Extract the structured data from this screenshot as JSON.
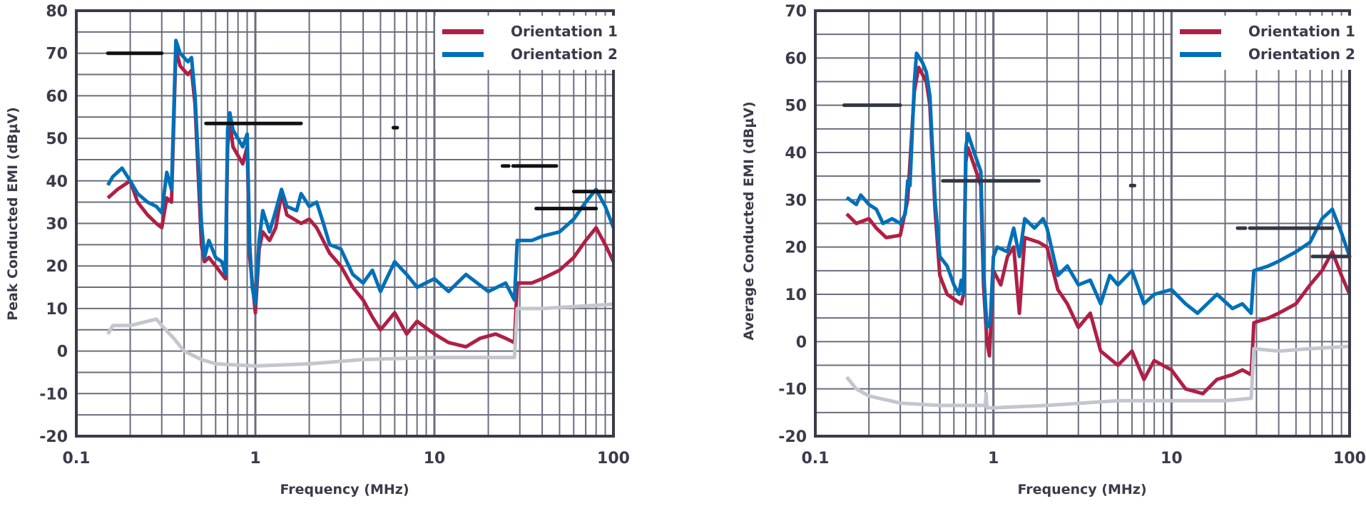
{
  "chart_data": [
    {
      "type": "line",
      "ylabel": "Peak Conducted EMI (dBµV)",
      "xlabel": "Frequency (MHz)",
      "xscale": "log",
      "xlim": [
        0.1,
        100
      ],
      "ylim": [
        -20,
        80
      ],
      "xticks": [
        "0.1",
        "1",
        "10",
        "100"
      ],
      "yticks": [
        "80",
        "70",
        "60",
        "50",
        "40",
        "30",
        "20",
        "10",
        "0",
        "-10",
        "-20"
      ],
      "grid": true,
      "legend_position": "top-right",
      "series": [
        {
          "name": "Orientation 1",
          "color": "#b01f45",
          "x": [
            0.15,
            0.17,
            0.2,
            0.22,
            0.25,
            0.28,
            0.3,
            0.32,
            0.34,
            0.36,
            0.38,
            0.42,
            0.44,
            0.46,
            0.5,
            0.52,
            0.55,
            0.6,
            0.68,
            0.7,
            0.72,
            0.75,
            0.85,
            0.9,
            0.93,
            1.0,
            1.05,
            1.1,
            1.2,
            1.3,
            1.4,
            1.5,
            1.8,
            2.0,
            2.2,
            2.6,
            3,
            3.5,
            4,
            4.5,
            5,
            6,
            7,
            8,
            10,
            12,
            15,
            18,
            22,
            25,
            28,
            29,
            35,
            40,
            50,
            60,
            70,
            80,
            90,
            100
          ],
          "y": [
            36,
            38,
            40,
            35,
            32,
            30,
            29,
            36,
            35,
            71,
            67,
            65,
            66,
            58,
            25,
            21,
            22,
            20,
            17,
            48,
            54,
            48,
            44,
            48,
            22,
            9,
            24,
            28,
            26,
            29,
            37,
            32,
            30,
            31,
            29,
            23,
            20,
            15,
            12,
            8,
            5,
            9,
            4,
            7,
            4,
            2,
            1,
            3,
            4,
            3,
            2,
            16,
            16,
            17,
            19,
            22,
            26,
            29,
            25,
            21
          ]
        },
        {
          "name": "Orientation 2",
          "color": "#0070b8",
          "x": [
            0.15,
            0.16,
            0.18,
            0.2,
            0.22,
            0.25,
            0.28,
            0.3,
            0.32,
            0.34,
            0.36,
            0.38,
            0.42,
            0.44,
            0.46,
            0.5,
            0.52,
            0.55,
            0.6,
            0.65,
            0.68,
            0.7,
            0.72,
            0.75,
            0.85,
            0.9,
            0.93,
            0.96,
            1.0,
            1.05,
            1.1,
            1.2,
            1.3,
            1.4,
            1.5,
            1.7,
            1.8,
            2.0,
            2.2,
            2.4,
            2.6,
            3.0,
            3.5,
            4,
            4.5,
            5,
            6,
            7,
            8,
            10,
            12,
            15,
            20,
            25,
            28,
            29,
            35,
            40,
            50,
            60,
            70,
            80,
            90,
            100
          ],
          "y": [
            39,
            41,
            43,
            40,
            37,
            35,
            34,
            32.5,
            42,
            38,
            73,
            70,
            68,
            69,
            60,
            30,
            22,
            26,
            22,
            21,
            18,
            52,
            56,
            52,
            48,
            51,
            25,
            15,
            11,
            26,
            33,
            28,
            33,
            38,
            34,
            33,
            37,
            34,
            35,
            30,
            25,
            24,
            18,
            16,
            19,
            14,
            21,
            18,
            15,
            17,
            14,
            18,
            14,
            16,
            12,
            26,
            26,
            27,
            28,
            31,
            35,
            38,
            34,
            29
          ]
        },
        {
          "color": "#c4c6ce",
          "x": [
            0.15,
            0.16,
            0.2,
            0.25,
            0.28,
            0.3,
            0.35,
            0.4,
            0.5,
            0.6,
            1,
            2,
            4,
            10,
            20,
            28,
            29,
            40,
            100
          ],
          "y": [
            4,
            6,
            6,
            7,
            7.5,
            6,
            3,
            0,
            -2,
            -3,
            -3.5,
            -3,
            -2,
            -1.5,
            -1.5,
            -1.5,
            10,
            10,
            11
          ]
        }
      ],
      "limit_lines": {
        "color": "#111111",
        "segments": [
          {
            "x": [
              0.15,
              0.3
            ],
            "y": 70
          },
          {
            "x": [
              0.53,
              1.8
            ],
            "y": 53.5
          },
          {
            "x": [
              5.9,
              6.2
            ],
            "y": 52.5
          },
          {
            "x": [
              24,
              26
            ],
            "y": 43.5
          },
          {
            "x": [
              27.5,
              48
            ],
            "y": 43.5
          },
          {
            "x": [
              37,
              80
            ],
            "y": 33.5
          },
          {
            "x": [
              60,
              100
            ],
            "y": 37.5
          }
        ]
      }
    },
    {
      "type": "line",
      "ylabel": "Average Conducted EMI (dBµV)",
      "xlabel": "Frequency (MHz)",
      "xscale": "log",
      "xlim": [
        0.1,
        100
      ],
      "ylim": [
        -20,
        70
      ],
      "xticks": [
        "0.1",
        "1",
        "10",
        "100"
      ],
      "yticks": [
        "70",
        "60",
        "50",
        "40",
        "30",
        "20",
        "10",
        "0",
        "-10",
        "-20"
      ],
      "grid": true,
      "legend_position": "top-right",
      "series": [
        {
          "name": "Orientation 1",
          "color": "#b01f45",
          "x": [
            0.15,
            0.17,
            0.2,
            0.22,
            0.25,
            0.3,
            0.33,
            0.36,
            0.38,
            0.42,
            0.44,
            0.47,
            0.5,
            0.55,
            0.6,
            0.66,
            0.68,
            0.7,
            0.72,
            0.8,
            0.85,
            0.88,
            0.92,
            0.95,
            1.0,
            1.1,
            1.2,
            1.3,
            1.4,
            1.5,
            1.8,
            2.0,
            2.3,
            2.6,
            3,
            3.5,
            4,
            5,
            6,
            7,
            8,
            10,
            12,
            15,
            18,
            22,
            25,
            28,
            29,
            35,
            40,
            50,
            60,
            70,
            80,
            90,
            100
          ],
          "y": [
            27,
            25,
            26,
            24,
            22,
            22.5,
            30,
            53,
            58,
            55,
            50,
            28,
            14,
            10,
            9,
            8,
            10,
            38,
            41,
            36,
            33,
            12,
            0,
            -3,
            15,
            12,
            18,
            20,
            6,
            22,
            21,
            20,
            11,
            8,
            3,
            6,
            -2,
            -5,
            -2,
            -8,
            -4,
            -6,
            -10,
            -11,
            -8,
            -7,
            -6,
            -7,
            4,
            5,
            6,
            8,
            12,
            15,
            19,
            14,
            10
          ]
        },
        {
          "name": "Orientation 2",
          "color": "#0070b8",
          "x": [
            0.15,
            0.17,
            0.18,
            0.2,
            0.22,
            0.24,
            0.27,
            0.3,
            0.32,
            0.33,
            0.34,
            0.36,
            0.37,
            0.4,
            0.42,
            0.44,
            0.47,
            0.5,
            0.55,
            0.6,
            0.64,
            0.66,
            0.68,
            0.7,
            0.72,
            0.78,
            0.85,
            0.88,
            0.92,
            0.96,
            1.0,
            1.05,
            1.2,
            1.3,
            1.4,
            1.5,
            1.7,
            1.9,
            2,
            2.3,
            2.6,
            3,
            3.5,
            4,
            4.5,
            5,
            6,
            7,
            8,
            10,
            12,
            14,
            18,
            22,
            25,
            28,
            29,
            35,
            40,
            50,
            60,
            70,
            80,
            90,
            100
          ],
          "y": [
            30.5,
            29,
            31,
            29,
            28,
            25,
            26,
            25,
            27,
            34,
            33,
            55,
            61,
            59,
            57,
            52,
            30,
            18,
            16,
            12,
            10,
            13,
            10,
            41,
            44,
            40,
            36,
            15,
            3,
            4,
            18,
            20,
            19,
            24,
            18,
            26,
            24,
            26,
            24,
            14,
            16,
            12,
            13,
            8,
            14,
            12,
            15,
            8,
            10,
            11,
            8,
            6,
            10,
            7,
            8,
            6,
            15,
            16,
            17,
            19,
            21,
            26,
            28,
            23,
            18
          ]
        },
        {
          "color": "#c4c6ce",
          "x": [
            0.15,
            0.17,
            0.2,
            0.3,
            0.5,
            0.9,
            0.91,
            0.92,
            1,
            2,
            5,
            10,
            20,
            28,
            29,
            40,
            60,
            100
          ],
          "y": [
            -7.5,
            -10,
            -11.5,
            -13,
            -13.5,
            -13.5,
            -11,
            -14,
            -14,
            -13.5,
            -12.5,
            -12.5,
            -12.5,
            -12,
            -1.5,
            -2,
            -1.5,
            -1
          ]
        }
      ],
      "limit_lines": {
        "color": "#333645",
        "segments": [
          {
            "x": [
              0.145,
              0.3
            ],
            "y": 50
          },
          {
            "x": [
              0.52,
              1.8
            ],
            "y": 34
          },
          {
            "x": [
              5.9,
              6.2
            ],
            "y": 33
          },
          {
            "x": [
              23.5,
              26
            ],
            "y": 24
          },
          {
            "x": [
              27.5,
              80
            ],
            "y": 24
          },
          {
            "x": [
              62,
              100
            ],
            "y": 18
          }
        ]
      }
    }
  ]
}
